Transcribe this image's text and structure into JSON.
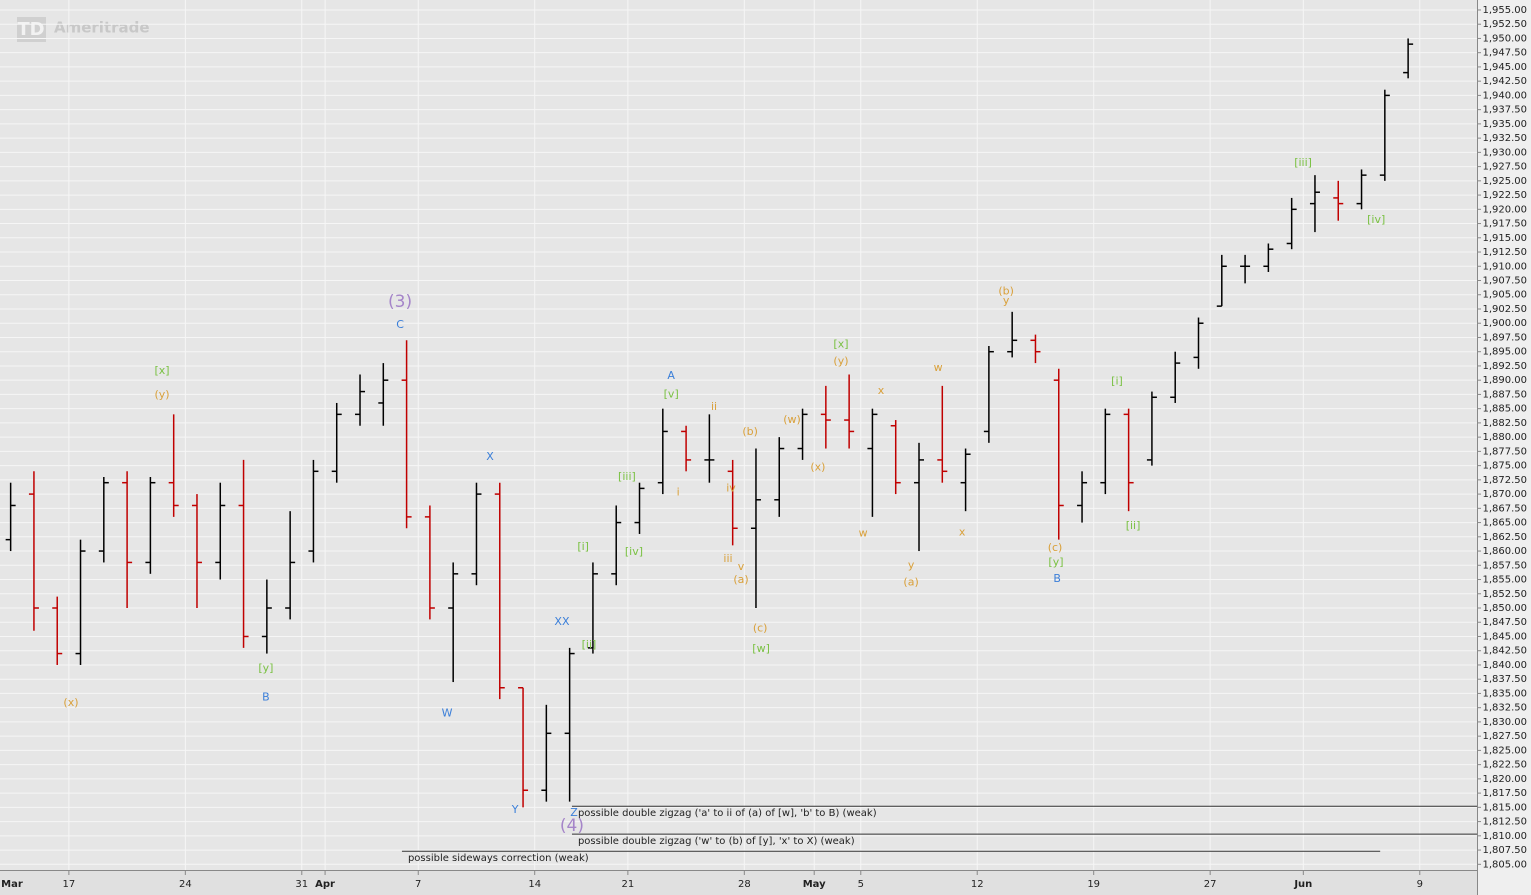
{
  "chart_data": {
    "type": "ohlc",
    "logo": "TD",
    "watermark": "Ameritrade",
    "up_color": "#000000",
    "down_color": "#c00000",
    "grid": true,
    "x": [
      0,
      1,
      2,
      3,
      4,
      5,
      6,
      7,
      8,
      9,
      10,
      11,
      12,
      13,
      14,
      15,
      16,
      17,
      18,
      19,
      20,
      21,
      22,
      23,
      24,
      25,
      26,
      27,
      28,
      29,
      30,
      31,
      32,
      33,
      34,
      35,
      36,
      37,
      38,
      39,
      40,
      41,
      42,
      43,
      44,
      45,
      46,
      47,
      48,
      49,
      50,
      51,
      52,
      53,
      54,
      55,
      56,
      57,
      58,
      59,
      60
    ],
    "open": [
      1862,
      1870,
      1850,
      1842,
      1860,
      1872,
      1858,
      1872,
      1868,
      1858,
      1868,
      1845,
      1850,
      1860,
      1874,
      1884,
      1886,
      1890,
      1866,
      1850,
      1856,
      1870,
      1836,
      1818,
      1828,
      1843,
      1856,
      1865,
      1872,
      1881,
      1876,
      1874,
      1864,
      1869,
      1878,
      1884,
      1883,
      1878,
      1882,
      1872,
      1876,
      1872,
      1881,
      1895,
      1897,
      1890,
      1868,
      1872,
      1884,
      1876,
      1887,
      1894,
      1903,
      1910,
      1910,
      1914,
      1921,
      1922,
      1921,
      1926,
      1944
    ],
    "high": [
      1872,
      1874,
      1852,
      1862,
      1873,
      1874,
      1873,
      1884,
      1870,
      1872,
      1876,
      1855,
      1867,
      1876,
      1886,
      1891,
      1893,
      1897,
      1868,
      1858,
      1872,
      1872,
      1836,
      1833,
      1843,
      1858,
      1868,
      1872,
      1885,
      1882,
      1884,
      1876,
      1878,
      1880,
      1885,
      1889,
      1891,
      1885,
      1883,
      1879,
      1889,
      1878,
      1896,
      1902,
      1898,
      1892,
      1874,
      1885,
      1885,
      1888,
      1895,
      1901,
      1912,
      1912,
      1914,
      1922,
      1926,
      1925,
      1927,
      1941,
      1950
    ],
    "low": [
      1860,
      1846,
      1840,
      1840,
      1858,
      1850,
      1856,
      1866,
      1850,
      1855,
      1843,
      1842,
      1848,
      1858,
      1872,
      1882,
      1882,
      1864,
      1848,
      1837,
      1854,
      1834,
      1815,
      1816,
      1816,
      1842,
      1854,
      1863,
      1870,
      1874,
      1872,
      1861,
      1850,
      1866,
      1876,
      1878,
      1878,
      1866,
      1870,
      1860,
      1872,
      1867,
      1879,
      1894,
      1893,
      1862,
      1865,
      1870,
      1867,
      1875,
      1886,
      1892,
      1903,
      1907,
      1909,
      1913,
      1916,
      1918,
      1920,
      1925,
      1943
    ],
    "close": [
      1868,
      1850,
      1842,
      1860,
      1872,
      1858,
      1872,
      1868,
      1858,
      1868,
      1845,
      1850,
      1858,
      1874,
      1884,
      1888,
      1890,
      1866,
      1850,
      1856,
      1870,
      1836,
      1818,
      1828,
      1842,
      1856,
      1865,
      1871,
      1881,
      1876,
      1876,
      1864,
      1869,
      1878,
      1884,
      1883,
      1881,
      1884,
      1872,
      1876,
      1874,
      1877,
      1895,
      1897,
      1895,
      1868,
      1872,
      1884,
      1872,
      1887,
      1893,
      1900,
      1910,
      1910,
      1913,
      1920,
      1923,
      1921,
      1926,
      1940,
      1949
    ],
    "xlim": [
      0,
      63.5
    ],
    "xticks": [
      {
        "value": 0,
        "label": "Mar"
      },
      {
        "value": 3,
        "label": "17"
      },
      {
        "value": 8,
        "label": "24"
      },
      {
        "value": 13,
        "label": "31"
      },
      {
        "value": 14,
        "label": "Apr"
      },
      {
        "value": 18,
        "label": "7"
      },
      {
        "value": 23,
        "label": "14"
      },
      {
        "value": 27,
        "label": "21"
      },
      {
        "value": 32,
        "label": "28"
      },
      {
        "value": 35,
        "label": "May"
      },
      {
        "value": 37,
        "label": "5"
      },
      {
        "value": 42,
        "label": "12"
      },
      {
        "value": 47,
        "label": "19"
      },
      {
        "value": 52,
        "label": "27"
      },
      {
        "value": 56,
        "label": "Jun"
      },
      {
        "value": 61,
        "label": "9"
      }
    ],
    "ylim": [
      1804,
      1956.75
    ],
    "yticks": [
      {
        "value": 1805,
        "label": "1,805.00"
      },
      {
        "value": 1807.5,
        "label": "1,807.50"
      },
      {
        "value": 1810,
        "label": "1,810.00"
      },
      {
        "value": 1812.5,
        "label": "1,812.50"
      },
      {
        "value": 1815,
        "label": "1,815.00"
      },
      {
        "value": 1817.5,
        "label": "1,817.50"
      },
      {
        "value": 1820,
        "label": "1,820.00"
      },
      {
        "value": 1822.5,
        "label": "1,822.50"
      },
      {
        "value": 1825,
        "label": "1,825.00"
      },
      {
        "value": 1827.5,
        "label": "1,827.50"
      },
      {
        "value": 1830,
        "label": "1,830.00"
      },
      {
        "value": 1832.5,
        "label": "1,832.50"
      },
      {
        "value": 1835,
        "label": "1,835.00"
      },
      {
        "value": 1837.5,
        "label": "1,837.50"
      },
      {
        "value": 1840,
        "label": "1,840.00"
      },
      {
        "value": 1842.5,
        "label": "1,842.50"
      },
      {
        "value": 1845,
        "label": "1,845.00"
      },
      {
        "value": 1847.5,
        "label": "1,847.50"
      },
      {
        "value": 1850,
        "label": "1,850.00"
      },
      {
        "value": 1852.5,
        "label": "1,852.50"
      },
      {
        "value": 1855,
        "label": "1,855.00"
      },
      {
        "value": 1857.5,
        "label": "1,857.50"
      },
      {
        "value": 1860,
        "label": "1,860.00"
      },
      {
        "value": 1862.5,
        "label": "1,862.50"
      },
      {
        "value": 1865,
        "label": "1,865.00"
      },
      {
        "value": 1867.5,
        "label": "1,867.50"
      },
      {
        "value": 1870,
        "label": "1,870.00"
      },
      {
        "value": 1872.5,
        "label": "1,872.50"
      },
      {
        "value": 1875,
        "label": "1,875.00"
      },
      {
        "value": 1877.5,
        "label": "1,877.50"
      },
      {
        "value": 1880,
        "label": "1,880.00"
      },
      {
        "value": 1882.5,
        "label": "1,882.50"
      },
      {
        "value": 1885,
        "label": "1,885.00"
      },
      {
        "value": 1887.5,
        "label": "1,887.50"
      },
      {
        "value": 1890,
        "label": "1,890.00"
      },
      {
        "value": 1892.5,
        "label": "1,892.50"
      },
      {
        "value": 1895,
        "label": "1,895.00"
      },
      {
        "value": 1897.5,
        "label": "1,897.50"
      },
      {
        "value": 1900,
        "label": "1,900.00"
      },
      {
        "value": 1902.5,
        "label": "1,902.50"
      },
      {
        "value": 1905,
        "label": "1,905.00"
      },
      {
        "value": 1907.5,
        "label": "1,907.50"
      },
      {
        "value": 1910,
        "label": "1,910.00"
      },
      {
        "value": 1912.5,
        "label": "1,912.50"
      },
      {
        "value": 1915,
        "label": "1,915.00"
      },
      {
        "value": 1917.5,
        "label": "1,917.50"
      },
      {
        "value": 1920,
        "label": "1,920.00"
      },
      {
        "value": 1922.5,
        "label": "1,922.50"
      },
      {
        "value": 1925,
        "label": "1,925.00"
      },
      {
        "value": 1927.5,
        "label": "1,927.50"
      },
      {
        "value": 1930,
        "label": "1,930.00"
      },
      {
        "value": 1932.5,
        "label": "1,932.50"
      },
      {
        "value": 1935,
        "label": "1,935.00"
      },
      {
        "value": 1937.5,
        "label": "1,937.50"
      },
      {
        "value": 1940,
        "label": "1,940.00"
      },
      {
        "value": 1942.5,
        "label": "1,942.50"
      },
      {
        "value": 1945,
        "label": "1,945.00"
      },
      {
        "value": 1947.5,
        "label": "1,947.50"
      },
      {
        "value": 1950,
        "label": "1,950.00"
      },
      {
        "value": 1952.5,
        "label": "1,952.50"
      },
      {
        "value": 1955,
        "label": "1,955.00"
      }
    ],
    "annotations": [
      {
        "text": "(x)",
        "color": "#d9a03a",
        "x": 3.09,
        "y": 1833.3
      },
      {
        "text": "[x]",
        "color": "#7ac143",
        "x": 7.0,
        "y": 1891.6
      },
      {
        "text": "(y)",
        "color": "#d9a03a",
        "x": 7.0,
        "y": 1887.4
      },
      {
        "text": "[y]",
        "color": "#7ac143",
        "x": 11.46,
        "y": 1839.4
      },
      {
        "text": "B",
        "color": "#3b7fd9",
        "x": 11.46,
        "y": 1834.3
      },
      {
        "text": "(3)",
        "color": "#a585c9",
        "x": 17.22,
        "y": 1903.7,
        "large": true
      },
      {
        "text": "C",
        "color": "#3b7fd9",
        "x": 17.22,
        "y": 1899.7
      },
      {
        "text": "X",
        "color": "#3b7fd9",
        "x": 21.08,
        "y": 1876.5
      },
      {
        "text": "W",
        "color": "#3b7fd9",
        "x": 19.24,
        "y": 1831.5
      },
      {
        "text": "Y",
        "color": "#3b7fd9",
        "x": 22.16,
        "y": 1814.5
      },
      {
        "text": "XX",
        "color": "#3b7fd9",
        "x": 24.17,
        "y": 1847.5
      },
      {
        "text": "Z",
        "color": "#3b7fd9",
        "x": 24.69,
        "y": 1814
      },
      {
        "text": "(4)",
        "color": "#a585c9",
        "x": 24.6,
        "y": 1811.7,
        "large": true
      },
      {
        "text": "[i]",
        "color": "#7ac143",
        "x": 25.08,
        "y": 1860.7
      },
      {
        "text": "[ii]",
        "color": "#7ac143",
        "x": 25.33,
        "y": 1843.5
      },
      {
        "text": "[iii]",
        "color": "#7ac143",
        "x": 26.96,
        "y": 1873
      },
      {
        "text": "[iv]",
        "color": "#7ac143",
        "x": 27.26,
        "y": 1859.8
      },
      {
        "text": "A",
        "color": "#3b7fd9",
        "x": 28.86,
        "y": 1890.7
      },
      {
        "text": "[v]",
        "color": "#7ac143",
        "x": 28.86,
        "y": 1887.5
      },
      {
        "text": "i",
        "color": "#d9a03a",
        "x": 29.16,
        "y": 1870.3
      },
      {
        "text": "ii",
        "color": "#d9a03a",
        "x": 30.7,
        "y": 1885.3
      },
      {
        "text": "iv",
        "color": "#d9a03a",
        "x": 31.43,
        "y": 1871
      },
      {
        "text": "iii",
        "color": "#d9a03a",
        "x": 31.3,
        "y": 1858.6
      },
      {
        "text": "v",
        "color": "#d9a03a",
        "x": 31.86,
        "y": 1857.2
      },
      {
        "text": "(a)",
        "color": "#d9a03a",
        "x": 31.86,
        "y": 1854.9
      },
      {
        "text": "(b)",
        "color": "#d9a03a",
        "x": 32.25,
        "y": 1880.9
      },
      {
        "text": "(c)",
        "color": "#d9a03a",
        "x": 32.68,
        "y": 1846.4
      },
      {
        "text": "[w]",
        "color": "#7ac143",
        "x": 32.72,
        "y": 1842.8
      },
      {
        "text": "(w)",
        "color": "#d9a03a",
        "x": 34.05,
        "y": 1883
      },
      {
        "text": "(x)",
        "color": "#d9a03a",
        "x": 35.16,
        "y": 1874.7
      },
      {
        "text": "[x]",
        "color": "#7ac143",
        "x": 36.15,
        "y": 1896.3
      },
      {
        "text": "(y)",
        "color": "#d9a03a",
        "x": 36.15,
        "y": 1893.3
      },
      {
        "text": "x",
        "color": "#d9a03a",
        "x": 37.87,
        "y": 1888.1
      },
      {
        "text": "w",
        "color": "#d9a03a",
        "x": 37.1,
        "y": 1863.1
      },
      {
        "text": "w",
        "color": "#d9a03a",
        "x": 40.32,
        "y": 1892.1
      },
      {
        "text": "y",
        "color": "#d9a03a",
        "x": 39.16,
        "y": 1857.5
      },
      {
        "text": "(a)",
        "color": "#d9a03a",
        "x": 39.16,
        "y": 1854.5
      },
      {
        "text": "x",
        "color": "#d9a03a",
        "x": 41.35,
        "y": 1863.3
      },
      {
        "text": "(b)",
        "color": "#d9a03a",
        "x": 43.24,
        "y": 1905.6
      },
      {
        "text": "y",
        "color": "#d9a03a",
        "x": 43.24,
        "y": 1903.9
      },
      {
        "text": "(c)",
        "color": "#d9a03a",
        "x": 45.34,
        "y": 1860.5
      },
      {
        "text": "[y]",
        "color": "#7ac143",
        "x": 45.38,
        "y": 1858
      },
      {
        "text": "B",
        "color": "#3b7fd9",
        "x": 45.43,
        "y": 1855.1
      },
      {
        "text": "[i]",
        "color": "#7ac143",
        "x": 48.0,
        "y": 1889.8
      },
      {
        "text": "[ii]",
        "color": "#7ac143",
        "x": 48.69,
        "y": 1864.4
      },
      {
        "text": "[iii]",
        "color": "#7ac143",
        "x": 55.99,
        "y": 1928.1
      },
      {
        "text": "[iv]",
        "color": "#7ac143",
        "x": 59.13,
        "y": 1918.1
      }
    ],
    "comments": [
      {
        "text": "possible double zigzag ('a' to ii of (a) of [w], 'b' to B) (weak)",
        "y": 1815.2,
        "x_start": 24.6,
        "x_end": 63.46
      },
      {
        "text": "possible double zigzag ('w' to (b) of [y], 'x' to X) (weak)",
        "y": 1810.3,
        "x_start": 24.6,
        "x_end": 63.46
      },
      {
        "text": "possible sideways correction (weak)",
        "y": 1807.3,
        "x_start": 17.3,
        "x_end": 59.3
      }
    ]
  }
}
